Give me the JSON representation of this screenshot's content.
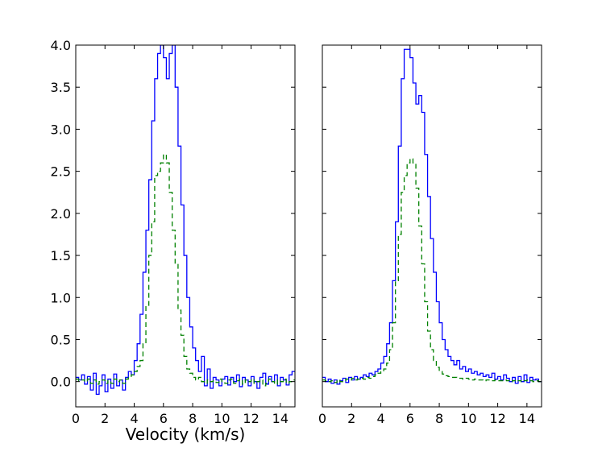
{
  "chart_data": [
    {
      "type": "line",
      "xlabel": "Velocity (km/s)",
      "ylabel": "",
      "xlim": [
        0,
        15
      ],
      "ylim": [
        -0.3,
        4.0
      ],
      "xticks": [
        "0",
        "2",
        "4",
        "6",
        "8",
        "10",
        "12",
        "14"
      ],
      "yticks": [
        "0.0",
        "0.5",
        "1.0",
        "1.5",
        "2.0",
        "2.5",
        "3.0",
        "3.5",
        "4.0"
      ],
      "grid": false,
      "series": [
        {
          "style": "solid-steps",
          "color": "#0000ff",
          "x": [
            0,
            0.2,
            0.4,
            0.6,
            0.8,
            1.0,
            1.2,
            1.4,
            1.6,
            1.8,
            2.0,
            2.2,
            2.4,
            2.6,
            2.8,
            3.0,
            3.2,
            3.4,
            3.6,
            3.8,
            4.0,
            4.2,
            4.4,
            4.6,
            4.8,
            5.0,
            5.2,
            5.4,
            5.6,
            5.8,
            6.0,
            6.2,
            6.4,
            6.6,
            6.8,
            7.0,
            7.2,
            7.4,
            7.6,
            7.8,
            8.0,
            8.2,
            8.4,
            8.6,
            8.8,
            9.0,
            9.2,
            9.4,
            9.6,
            9.8,
            10.0,
            10.2,
            10.4,
            10.6,
            10.8,
            11.0,
            11.2,
            11.4,
            11.6,
            11.8,
            12.0,
            12.2,
            12.4,
            12.6,
            12.8,
            13.0,
            13.2,
            13.4,
            13.6,
            13.8,
            14.0,
            14.2,
            14.4,
            14.6,
            14.8
          ],
          "y": [
            0.05,
            0.02,
            0.08,
            -0.03,
            0.06,
            -0.1,
            0.1,
            -0.15,
            -0.05,
            0.08,
            -0.12,
            0.03,
            -0.08,
            0.09,
            -0.05,
            0.02,
            -0.1,
            0.05,
            0.12,
            0.08,
            0.25,
            0.45,
            0.8,
            1.3,
            1.8,
            2.4,
            3.1,
            3.6,
            3.9,
            4.0,
            3.85,
            3.6,
            3.9,
            4.0,
            3.5,
            2.8,
            2.1,
            1.5,
            1.0,
            0.65,
            0.4,
            0.25,
            0.12,
            0.3,
            -0.05,
            0.15,
            -0.08,
            0.05,
            0.02,
            -0.05,
            0.03,
            0.06,
            -0.04,
            0.05,
            0.0,
            0.08,
            -0.06,
            0.05,
            0.02,
            -0.05,
            0.06,
            0.0,
            -0.08,
            0.05,
            0.1,
            -0.03,
            0.06,
            0.0,
            0.08,
            -0.05,
            0.05,
            0.02,
            -0.04,
            0.08,
            0.12
          ]
        },
        {
          "style": "dashed-steps",
          "color": "#008000",
          "x": [
            0,
            0.2,
            0.4,
            0.6,
            0.8,
            1.0,
            1.2,
            1.4,
            1.6,
            1.8,
            2.0,
            2.2,
            2.4,
            2.6,
            2.8,
            3.0,
            3.2,
            3.4,
            3.6,
            3.8,
            4.0,
            4.2,
            4.4,
            4.6,
            4.8,
            5.0,
            5.2,
            5.4,
            5.6,
            5.8,
            6.0,
            6.2,
            6.4,
            6.6,
            6.8,
            7.0,
            7.2,
            7.4,
            7.6,
            7.8,
            8.0,
            8.2,
            8.4,
            8.6,
            8.8,
            9.0,
            9.2,
            9.4,
            9.6,
            9.8,
            10.0,
            10.2,
            10.4,
            10.6,
            10.8,
            11.0,
            11.2,
            11.4,
            11.6,
            11.8,
            12.0,
            12.2,
            12.4,
            12.6,
            12.8,
            13.0,
            13.2,
            13.4,
            13.6,
            13.8,
            14.0,
            14.2,
            14.4,
            14.6,
            14.8
          ],
          "y": [
            0.03,
            0.01,
            0.02,
            0.0,
            0.03,
            -0.02,
            0.02,
            -0.03,
            0.0,
            0.02,
            -0.02,
            0.01,
            -0.02,
            0.03,
            0.0,
            0.02,
            -0.02,
            0.03,
            0.05,
            0.08,
            0.12,
            0.18,
            0.25,
            0.45,
            0.9,
            1.5,
            1.9,
            2.45,
            2.5,
            2.6,
            2.7,
            2.6,
            2.25,
            1.8,
            1.4,
            0.85,
            0.55,
            0.3,
            0.15,
            0.1,
            0.05,
            0.02,
            0.05,
            0.0,
            -0.02,
            0.02,
            0.0,
            0.01,
            -0.01,
            0.03,
            0.0,
            -0.02,
            0.02,
            0.03,
            -0.02,
            0.01,
            0.03,
            -0.03,
            0.02,
            0.0,
            0.03,
            -0.02,
            0.0,
            0.02,
            -0.05,
            -0.02,
            0.03,
            0.0,
            -0.03,
            0.02,
            0.0,
            0.03,
            -0.02,
            0.0,
            0.02
          ]
        }
      ]
    },
    {
      "type": "line",
      "xlabel": "",
      "ylabel": "",
      "xlim": [
        0,
        15
      ],
      "ylim": [
        -0.3,
        4.0
      ],
      "xticks": [
        "0",
        "2",
        "4",
        "6",
        "8",
        "10",
        "12",
        "14"
      ],
      "yticks": [],
      "grid": false,
      "series": [
        {
          "style": "solid-steps",
          "color": "#0000ff",
          "x": [
            0,
            0.2,
            0.4,
            0.6,
            0.8,
            1.0,
            1.2,
            1.4,
            1.6,
            1.8,
            2.0,
            2.2,
            2.4,
            2.6,
            2.8,
            3.0,
            3.2,
            3.4,
            3.6,
            3.8,
            4.0,
            4.2,
            4.4,
            4.6,
            4.8,
            5.0,
            5.2,
            5.4,
            5.6,
            5.8,
            6.0,
            6.2,
            6.4,
            6.6,
            6.8,
            7.0,
            7.2,
            7.4,
            7.6,
            7.8,
            8.0,
            8.2,
            8.4,
            8.6,
            8.8,
            9.0,
            9.2,
            9.4,
            9.6,
            9.8,
            10.0,
            10.2,
            10.4,
            10.6,
            10.8,
            11.0,
            11.2,
            11.4,
            11.6,
            11.8,
            12.0,
            12.2,
            12.4,
            12.6,
            12.8,
            13.0,
            13.2,
            13.4,
            13.6,
            13.8,
            14.0,
            14.2,
            14.4,
            14.6,
            14.8
          ],
          "y": [
            0.05,
            0.0,
            0.03,
            -0.02,
            0.02,
            -0.03,
            0.01,
            0.04,
            -0.01,
            0.05,
            0.02,
            0.06,
            0.03,
            0.05,
            0.08,
            0.06,
            0.1,
            0.08,
            0.12,
            0.15,
            0.22,
            0.3,
            0.45,
            0.7,
            1.2,
            1.9,
            2.8,
            3.6,
            3.95,
            3.95,
            3.85,
            3.55,
            3.3,
            3.4,
            3.2,
            2.7,
            2.2,
            1.7,
            1.3,
            0.95,
            0.7,
            0.5,
            0.38,
            0.3,
            0.25,
            0.2,
            0.25,
            0.15,
            0.18,
            0.12,
            0.15,
            0.1,
            0.12,
            0.08,
            0.1,
            0.06,
            0.08,
            0.05,
            0.1,
            0.03,
            0.06,
            0.02,
            0.08,
            0.04,
            0.0,
            0.05,
            -0.02,
            0.06,
            0.0,
            0.08,
            -0.01,
            0.05,
            0.02,
            0.03,
            0.0
          ]
        },
        {
          "style": "dashed-steps",
          "color": "#008000",
          "x": [
            0,
            0.2,
            0.4,
            0.6,
            0.8,
            1.0,
            1.2,
            1.4,
            1.6,
            1.8,
            2.0,
            2.2,
            2.4,
            2.6,
            2.8,
            3.0,
            3.2,
            3.4,
            3.6,
            3.8,
            4.0,
            4.2,
            4.4,
            4.6,
            4.8,
            5.0,
            5.2,
            5.4,
            5.6,
            5.8,
            6.0,
            6.2,
            6.4,
            6.6,
            6.8,
            7.0,
            7.2,
            7.4,
            7.6,
            7.8,
            8.0,
            8.2,
            8.4,
            8.6,
            8.8,
            9.0,
            9.2,
            9.4,
            9.6,
            9.8,
            10.0,
            10.2,
            10.4,
            10.6,
            10.8,
            11.0,
            11.2,
            11.4,
            11.6,
            11.8,
            12.0,
            12.2,
            12.4,
            12.6,
            12.8,
            13.0,
            13.2,
            13.4,
            13.6,
            13.8,
            14.0,
            14.2,
            14.4,
            14.6,
            14.8
          ],
          "y": [
            0.02,
            0.01,
            0.0,
            0.01,
            -0.01,
            0.02,
            0.0,
            0.01,
            0.03,
            0.02,
            0.04,
            0.02,
            0.03,
            0.04,
            0.03,
            0.05,
            0.04,
            0.06,
            0.08,
            0.1,
            0.12,
            0.15,
            0.22,
            0.38,
            0.7,
            1.2,
            1.75,
            2.25,
            2.45,
            2.6,
            2.65,
            2.6,
            2.3,
            1.85,
            1.4,
            0.95,
            0.6,
            0.38,
            0.25,
            0.17,
            0.12,
            0.09,
            0.07,
            0.06,
            0.05,
            0.05,
            0.04,
            0.04,
            0.03,
            0.04,
            0.03,
            0.02,
            0.03,
            0.02,
            0.02,
            0.01,
            0.02,
            0.02,
            0.01,
            0.02,
            0.01,
            0.01,
            0.02,
            0.01,
            0.0,
            0.01,
            0.02,
            0.01,
            0.0,
            0.01,
            0.02,
            0.01,
            0.0,
            0.01,
            0.0
          ]
        }
      ]
    }
  ]
}
